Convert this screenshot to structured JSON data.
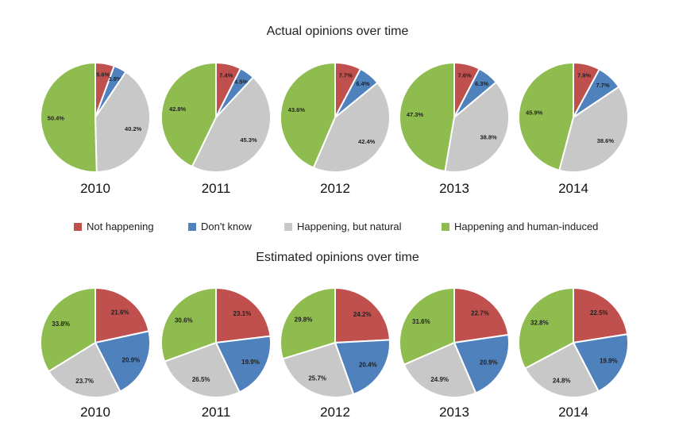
{
  "colors": {
    "not_happening": "#c0504d",
    "dont_know": "#4f81bd",
    "natural": "#c8c8c8",
    "human": "#8fbc4f"
  },
  "legend": [
    {
      "key": "not_happening",
      "label": "Not happening"
    },
    {
      "key": "dont_know",
      "label": "Don't know"
    },
    {
      "key": "natural",
      "label": "Happening, but natural"
    },
    {
      "key": "human",
      "label": "Happening and human-induced"
    }
  ],
  "chart_data": [
    {
      "type": "pie",
      "title": "Actual opinions over time",
      "categories": [
        "Not happening",
        "Don't know",
        "Happening, but natural",
        "Happening and human-induced"
      ],
      "pies": [
        {
          "year": "2010",
          "values": [
            5.6,
            3.8,
            40.2,
            50.4
          ],
          "labels": [
            "5.6%",
            "3.8%",
            "40.2%",
            "50.4%"
          ]
        },
        {
          "year": "2011",
          "values": [
            7.4,
            4.5,
            45.3,
            42.8
          ],
          "labels": [
            "7.4%",
            "4.5%",
            "45.3%",
            "42.8%"
          ]
        },
        {
          "year": "2012",
          "values": [
            7.7,
            6.4,
            42.4,
            43.6
          ],
          "labels": [
            "7.7%",
            "6.4%",
            "42.4%",
            "43.6%"
          ]
        },
        {
          "year": "2013",
          "values": [
            7.6,
            6.3,
            38.8,
            47.3
          ],
          "labels": [
            "7.6%",
            "6.3%",
            "38.8%",
            "47.3%"
          ]
        },
        {
          "year": "2014",
          "values": [
            7.9,
            7.7,
            38.6,
            45.9
          ],
          "labels": [
            "7.9%",
            "7.7%",
            "38.6%",
            "45.9%"
          ]
        }
      ]
    },
    {
      "type": "pie",
      "title": "Estimated opinions over time",
      "categories": [
        "Not happening",
        "Don't know",
        "Happening, but natural",
        "Happening and human-induced"
      ],
      "pies": [
        {
          "year": "2010",
          "values": [
            21.6,
            20.9,
            23.7,
            33.8
          ],
          "labels": [
            "21.6%",
            "20.9%",
            "23.7%",
            "33.8%"
          ]
        },
        {
          "year": "2011",
          "values": [
            23.1,
            19.9,
            26.5,
            30.6
          ],
          "labels": [
            "23.1%",
            "19.9%",
            "26.5%",
            "30.6%"
          ]
        },
        {
          "year": "2012",
          "values": [
            24.2,
            20.4,
            25.7,
            29.8
          ],
          "labels": [
            "24.2%",
            "20.4%",
            "25.7%",
            "29.8%"
          ]
        },
        {
          "year": "2013",
          "values": [
            22.7,
            20.9,
            24.9,
            31.6
          ],
          "labels": [
            "22.7%",
            "20.9%",
            "24.9%",
            "31.6%"
          ]
        },
        {
          "year": "2014",
          "values": [
            22.5,
            19.9,
            24.8,
            32.8
          ],
          "labels": [
            "22.5%",
            "19.9%",
            "24.8%",
            "32.8%"
          ]
        }
      ]
    }
  ]
}
